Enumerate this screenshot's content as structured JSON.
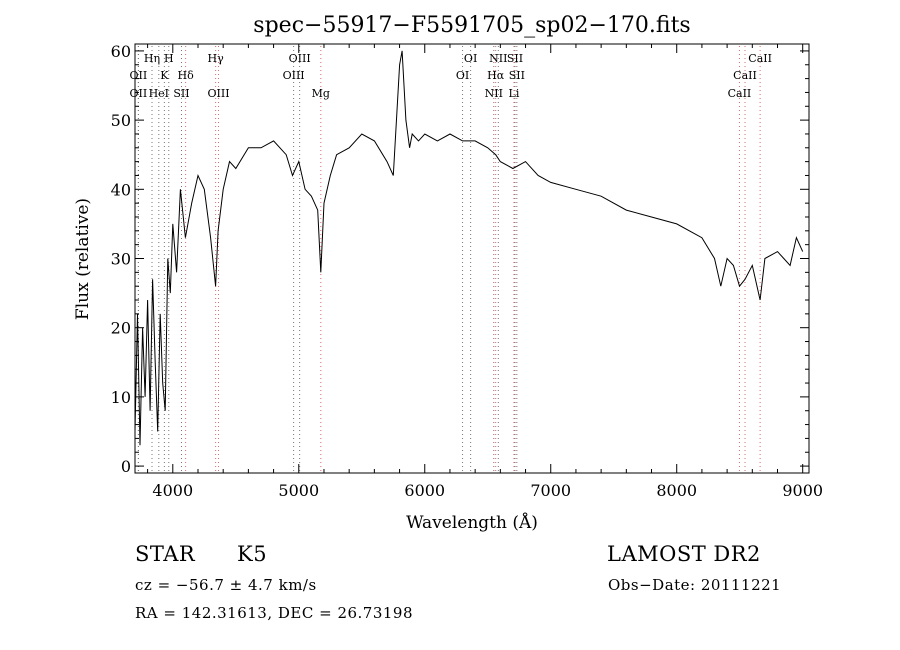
{
  "chart_data": {
    "type": "line",
    "title": "spec−55917−F5591705_sp02−170.fits",
    "xlabel": "Wavelength (Å)",
    "ylabel": "Flux (relative)",
    "xlim": [
      3700,
      9050
    ],
    "ylim": [
      -1,
      61
    ],
    "xticks": [
      4000,
      5000,
      6000,
      7000,
      8000,
      9000
    ],
    "yticks": [
      0,
      10,
      20,
      30,
      40,
      50,
      60
    ],
    "grid": false,
    "legend": "none",
    "series": [
      {
        "x": [
          3700,
          3720,
          3740,
          3760,
          3780,
          3800,
          3820,
          3840,
          3860,
          3880,
          3900,
          3920,
          3940,
          3960,
          3980,
          4000,
          4030,
          4060,
          4100,
          4150,
          4200,
          4250,
          4300,
          4340,
          4360,
          4400,
          4450,
          4500,
          4600,
          4700,
          4800,
          4900,
          4950,
          5000,
          5050,
          5100,
          5150,
          5175,
          5200,
          5250,
          5300,
          5400,
          5500,
          5600,
          5700,
          5750,
          5800,
          5820,
          5850,
          5880,
          5900,
          5950,
          6000,
          6100,
          6200,
          6300,
          6400,
          6500,
          6563,
          6600,
          6700,
          6800,
          6900,
          7000,
          7200,
          7400,
          7600,
          7800,
          8000,
          8200,
          8300,
          8350,
          8400,
          8450,
          8498,
          8542,
          8600,
          8662,
          8700,
          8800,
          8850,
          8900,
          8950,
          9000
        ],
        "values": [
          5,
          22,
          3,
          20,
          10,
          24,
          8,
          27,
          15,
          5,
          22,
          12,
          8,
          30,
          25,
          35,
          28,
          40,
          33,
          38,
          42,
          40,
          33,
          26,
          34,
          40,
          44,
          43,
          46,
          46,
          47,
          45,
          42,
          44,
          40,
          39,
          37,
          28,
          38,
          42,
          45,
          46,
          48,
          47,
          44,
          42,
          58,
          60,
          50,
          46,
          48,
          47,
          48,
          47,
          48,
          47,
          47,
          46,
          45,
          44,
          43,
          44,
          42,
          41,
          40,
          39,
          37,
          36,
          35,
          33,
          30,
          26,
          30,
          29,
          26,
          27,
          29,
          24,
          30,
          31,
          30,
          29,
          33,
          31
        ]
      }
    ],
    "line_labels": [
      {
        "label": "Hη",
        "x": 3835,
        "row": 1,
        "color": "#777777"
      },
      {
        "label": "H",
        "x": 3968,
        "row": 1,
        "color": "#777777"
      },
      {
        "label": "OII",
        "x": 3727,
        "row": 2,
        "color": "#777777"
      },
      {
        "label": "K",
        "x": 3933,
        "row": 2,
        "color": "#777777"
      },
      {
        "label": "Hδ",
        "x": 4102,
        "row": 2,
        "color": "#d96b6b"
      },
      {
        "label": "OII",
        "x": 3727,
        "row": 3,
        "color": "#777777"
      },
      {
        "label": "HeI",
        "x": 3889,
        "row": 3,
        "color": "#777777"
      },
      {
        "label": "SII",
        "x": 4069,
        "row": 3,
        "color": "#777777"
      },
      {
        "label": "Hγ",
        "x": 4340,
        "row": 1,
        "color": "#d96b6b"
      },
      {
        "label": "OIII",
        "x": 4363,
        "row": 3,
        "color": "#d96b6b"
      },
      {
        "label": "OIII",
        "x": 5007,
        "row": 1,
        "color": "#777777"
      },
      {
        "label": "OIII",
        "x": 4959,
        "row": 2,
        "color": "#777777"
      },
      {
        "label": "Mg",
        "x": 5175,
        "row": 3,
        "color": "#d96b6b"
      },
      {
        "label": "OI",
        "x": 6364,
        "row": 1,
        "color": "#777777"
      },
      {
        "label": "OI",
        "x": 6300,
        "row": 2,
        "color": "#777777"
      },
      {
        "label": "NII",
        "x": 6584,
        "row": 1,
        "color": "#777777"
      },
      {
        "label": "SII",
        "x": 6716,
        "row": 1,
        "color": "#777777"
      },
      {
        "label": "Hα",
        "x": 6563,
        "row": 2,
        "color": "#d96b6b"
      },
      {
        "label": "SII",
        "x": 6731,
        "row": 2,
        "color": "#777777"
      },
      {
        "label": "NII",
        "x": 6548,
        "row": 3,
        "color": "#777777"
      },
      {
        "label": "Li",
        "x": 6708,
        "row": 3,
        "color": "#d96b6b"
      },
      {
        "label": "CaII",
        "x": 8662,
        "row": 1,
        "color": "#d96b6b"
      },
      {
        "label": "CaII",
        "x": 8542,
        "row": 2,
        "color": "#d96b6b"
      },
      {
        "label": "CaII",
        "x": 8498,
        "row": 3,
        "color": "#d96b6b"
      }
    ]
  },
  "info": {
    "class_label": "STAR",
    "subclass": "K5",
    "survey": "LAMOST DR2",
    "cz": "cz = −56.7 ± 4.7 km/s",
    "obs_date": "Obs−Date: 20111221",
    "radec": "RA = 142.31613, DEC =  26.73198"
  },
  "colors": {
    "spectrum": "#000000",
    "marker_gray": "#777777",
    "marker_red": "#d96b6b"
  }
}
